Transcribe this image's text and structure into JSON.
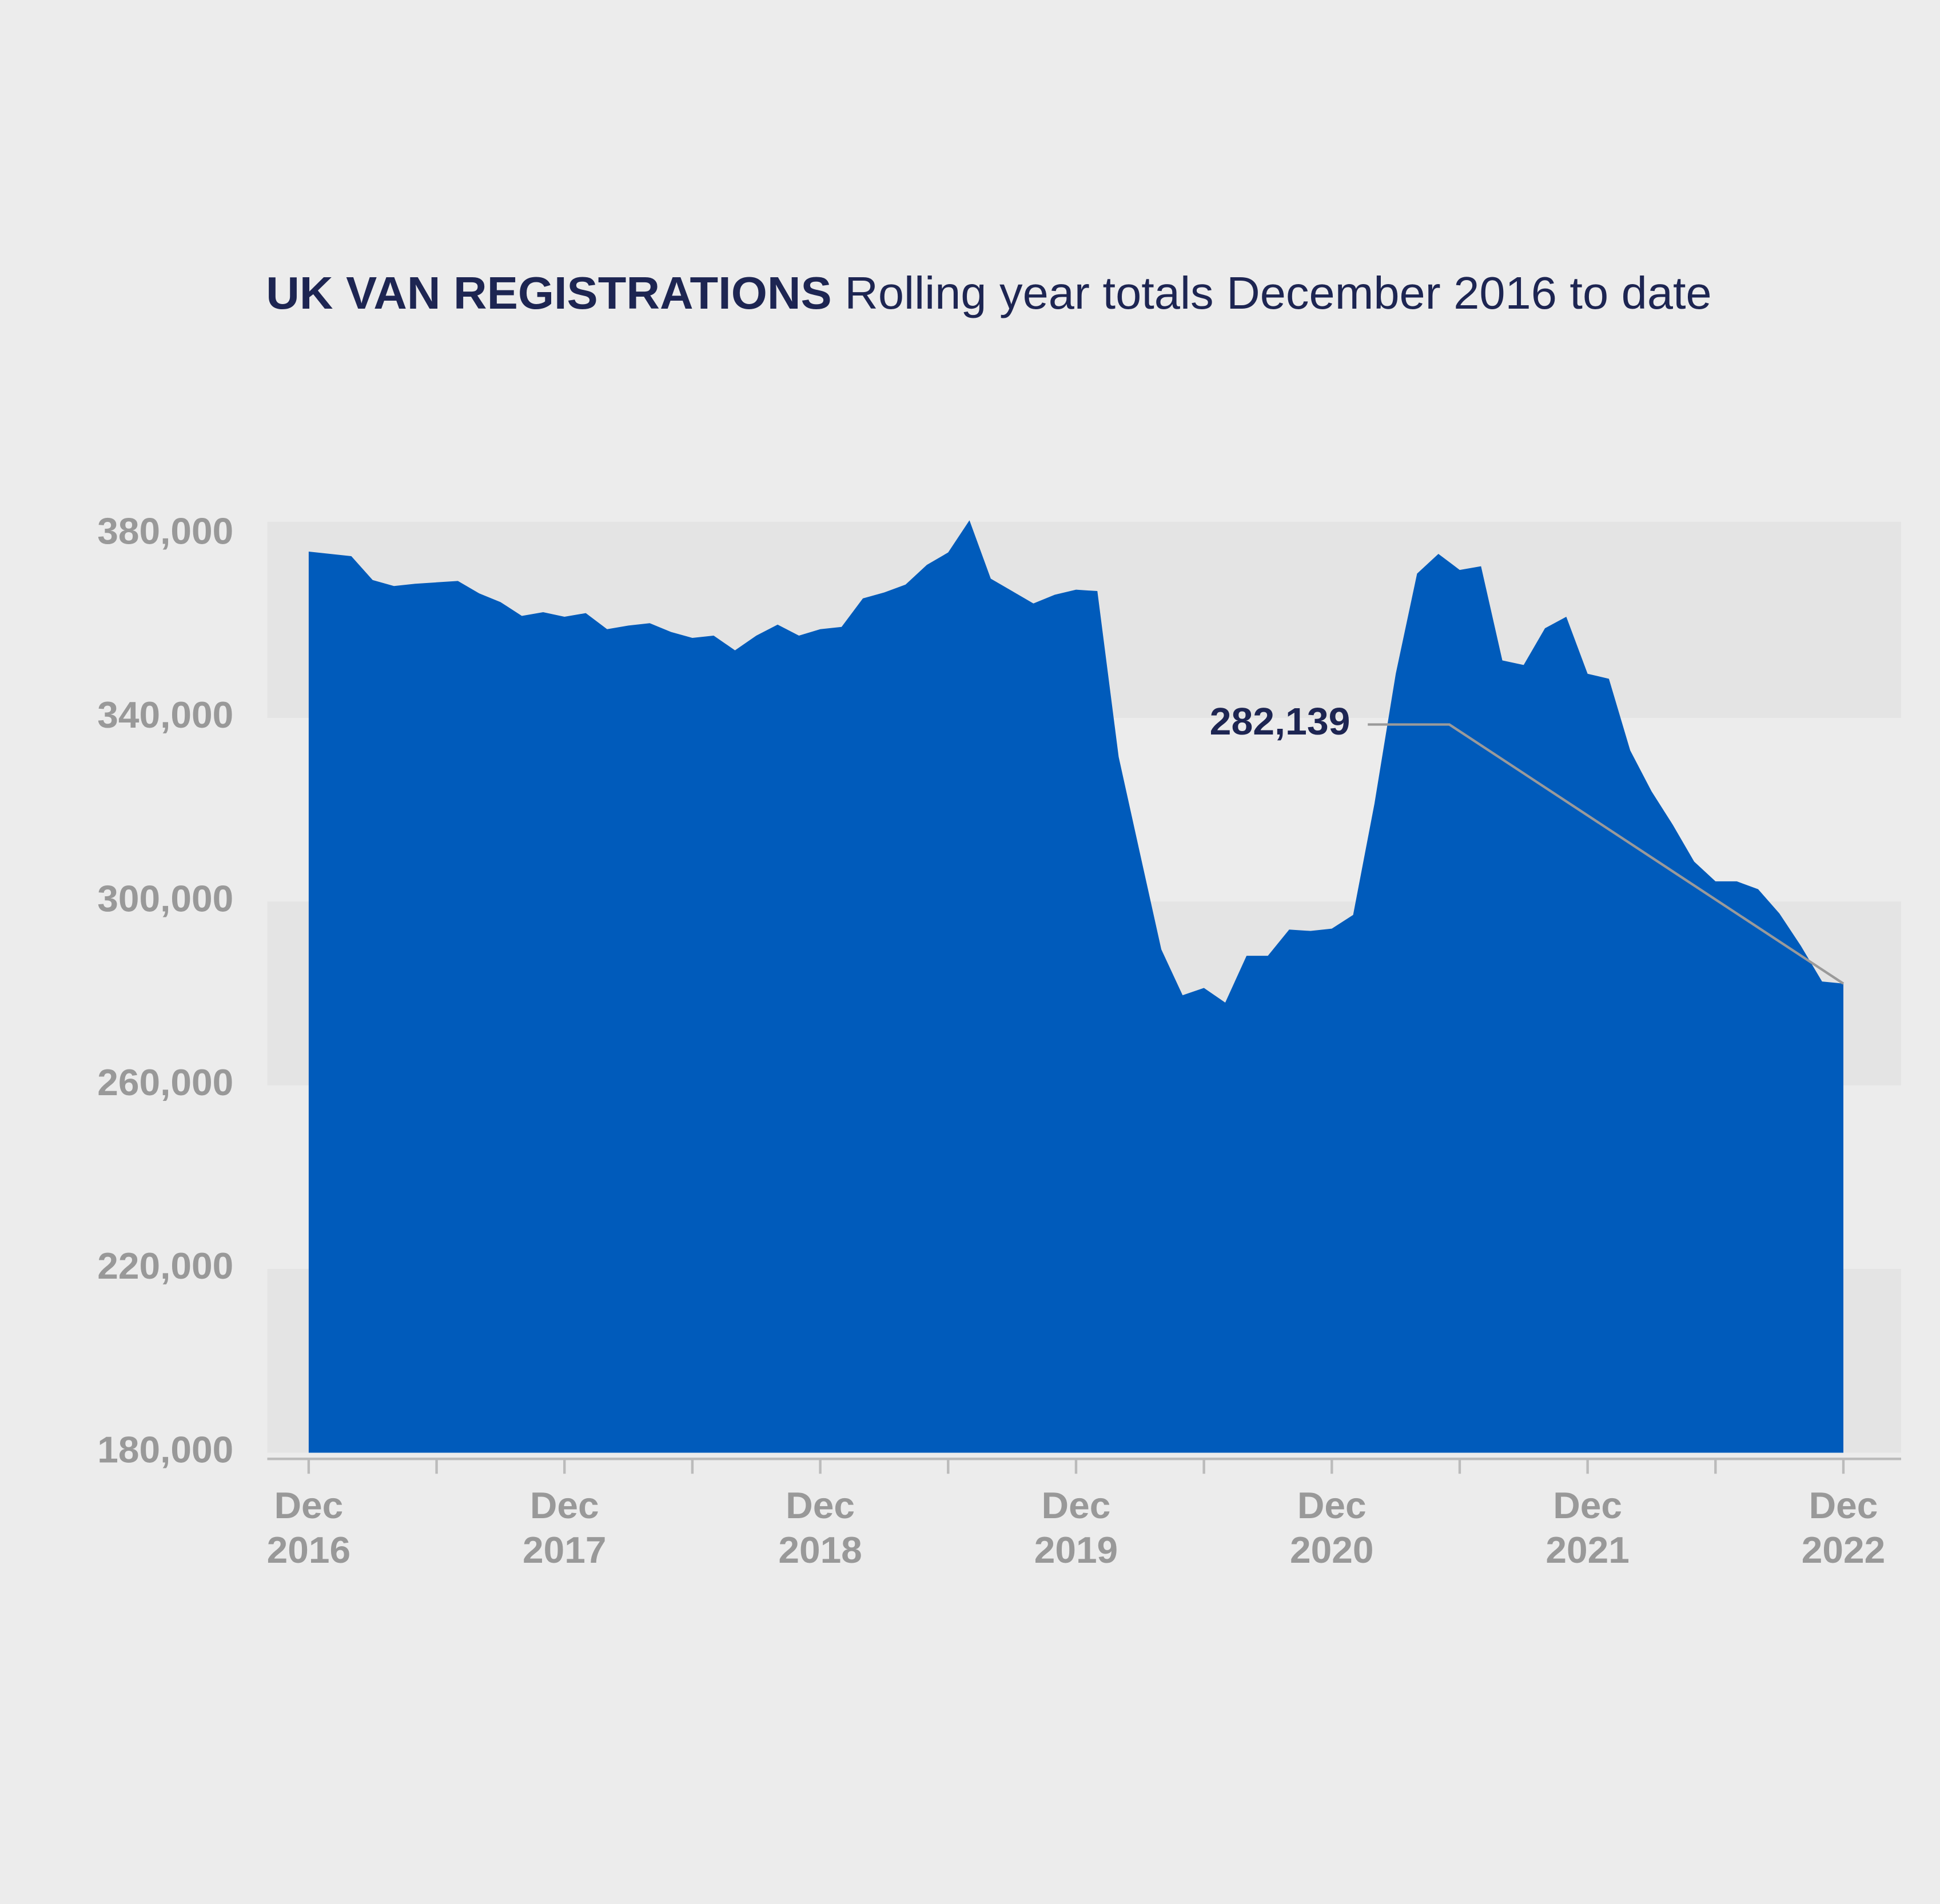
{
  "chart_data": {
    "type": "area",
    "title": "UK VAN REGISTRATIONS",
    "subtitle": "Rolling year totals December 2016 to date",
    "annotation": "282,139",
    "categories": [
      "Dec 2016",
      null,
      null,
      null,
      null,
      null,
      null,
      null,
      null,
      null,
      null,
      null,
      "Dec 2017",
      null,
      null,
      null,
      null,
      null,
      null,
      null,
      null,
      null,
      null,
      null,
      "Dec 2018",
      null,
      null,
      null,
      null,
      null,
      null,
      null,
      null,
      null,
      null,
      null,
      "Dec 2019",
      null,
      null,
      null,
      null,
      null,
      null,
      null,
      null,
      null,
      null,
      null,
      "Dec 2020",
      null,
      null,
      null,
      null,
      null,
      null,
      null,
      null,
      null,
      null,
      null,
      "Dec 2021",
      null,
      null,
      null,
      null,
      null,
      null,
      null,
      null,
      null,
      null,
      null,
      "Dec 2022"
    ],
    "values": [
      376200,
      375700,
      375200,
      370000,
      368700,
      369200,
      369500,
      369800,
      367100,
      365200,
      362200,
      363000,
      362000,
      362800,
      359300,
      360100,
      360600,
      358700,
      357400,
      357900,
      354700,
      357900,
      360300,
      357900,
      359300,
      359800,
      366000,
      367300,
      369000,
      373300,
      376000,
      383000,
      370300,
      367600,
      364900,
      366800,
      367900,
      367600,
      331500,
      310500,
      289600,
      279600,
      281200,
      278000,
      288200,
      288200,
      293900,
      293600,
      294100,
      297100,
      321300,
      349600,
      371400,
      375700,
      372200,
      373000,
      352500,
      351500,
      359500,
      362000,
      349600,
      348500,
      332900,
      324000,
      316700,
      308700,
      304400,
      304400,
      302700,
      297400,
      290400,
      282600,
      282139
    ],
    "color": "#005bbb",
    "ylim": [
      180000,
      380000
    ],
    "yticks": [
      {
        "value": 180000,
        "label": "180,000"
      },
      {
        "value": 220000,
        "label": "220,000"
      },
      {
        "value": 260000,
        "label": "260,000"
      },
      {
        "value": 300000,
        "label": "300,000"
      },
      {
        "value": 340000,
        "label": "340,000"
      },
      {
        "value": 380000,
        "label": "380,000"
      }
    ],
    "grid": "bands"
  }
}
